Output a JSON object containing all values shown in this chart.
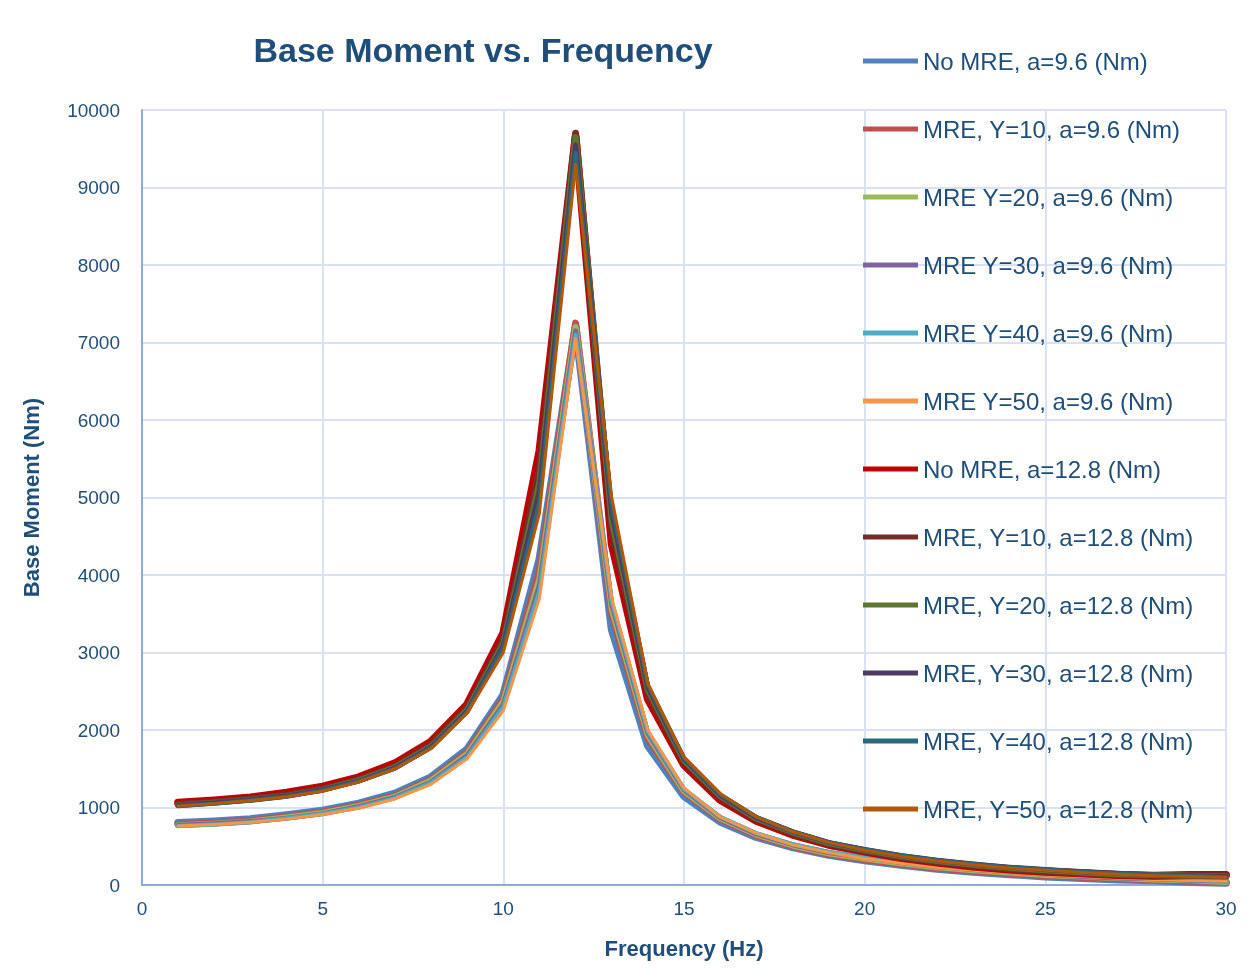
{
  "chart_data": {
    "type": "line",
    "title": "Base Moment vs. Frequency",
    "xlabel": "Frequency (Hz)",
    "ylabel": "Base Moment (Nm)",
    "x": [
      1,
      2,
      3,
      4,
      5,
      6,
      7,
      8,
      9,
      10,
      11,
      12,
      13,
      14,
      15,
      16,
      17,
      18,
      19,
      20,
      21,
      22,
      23,
      24,
      25,
      26,
      27,
      28,
      29,
      30
    ],
    "xlim": [
      0,
      30
    ],
    "xticks": [
      0,
      5,
      10,
      15,
      20,
      25,
      30
    ],
    "ylim": [
      0,
      10000
    ],
    "yticks": [
      0,
      1000,
      2000,
      3000,
      4000,
      5000,
      6000,
      7000,
      8000,
      9000,
      10000
    ],
    "grid": true,
    "legend": "right",
    "marker": "none",
    "line_style": "solid",
    "series": [
      {
        "name": "No MRE, a=9.6 (Nm)",
        "color": "#4f81bd",
        "values": [
          800,
          820,
          850,
          900,
          960,
          1050,
          1180,
          1390,
          1750,
          2450,
          4200,
          7200,
          3300,
          1800,
          1150,
          820,
          620,
          490,
          390,
          320,
          260,
          210,
          170,
          140,
          110,
          90,
          70,
          60,
          40,
          30
        ]
      },
      {
        "name": "MRE, Y=10, a=9.6 (Nm)",
        "color": "#c0504d",
        "values": [
          780,
          800,
          830,
          880,
          940,
          1030,
          1150,
          1360,
          1710,
          2400,
          4050,
          7250,
          3500,
          1900,
          1200,
          850,
          640,
          500,
          400,
          330,
          270,
          220,
          180,
          150,
          120,
          100,
          80,
          70,
          50,
          40
        ]
      },
      {
        "name": "MRE Y=20, a=9.6 (Nm)",
        "color": "#9bbb59",
        "values": [
          770,
          790,
          820,
          870,
          930,
          1020,
          1140,
          1350,
          1690,
          2370,
          3950,
          7200,
          3560,
          1930,
          1210,
          860,
          650,
          510,
          410,
          340,
          280,
          230,
          190,
          160,
          130,
          110,
          90,
          70,
          60,
          40
        ]
      },
      {
        "name": "MRE Y=30, a=9.6 (Nm)",
        "color": "#8064a2",
        "values": [
          770,
          790,
          820,
          860,
          920,
          1010,
          1130,
          1330,
          1670,
          2330,
          3870,
          7150,
          3620,
          1960,
          1230,
          870,
          660,
          520,
          420,
          350,
          290,
          240,
          200,
          170,
          140,
          110,
          90,
          80,
          60,
          50
        ]
      },
      {
        "name": "MRE Y=40, a=9.6 (Nm)",
        "color": "#4bacc6",
        "values": [
          760,
          780,
          810,
          860,
          920,
          1000,
          1120,
          1320,
          1650,
          2300,
          3800,
          7100,
          3660,
          1980,
          1240,
          880,
          670,
          530,
          430,
          360,
          300,
          250,
          210,
          170,
          140,
          120,
          100,
          80,
          60,
          50
        ]
      },
      {
        "name": "MRE Y=50, a=9.6 (Nm)",
        "color": "#f79646",
        "values": [
          760,
          780,
          810,
          850,
          910,
          990,
          1110,
          1300,
          1630,
          2250,
          3700,
          7050,
          3700,
          2000,
          1250,
          880,
          670,
          520,
          420,
          340,
          280,
          230,
          190,
          160,
          130,
          110,
          90,
          70,
          60,
          50
        ]
      },
      {
        "name": "No MRE, a=12.8 (Nm)",
        "color": "#c00000",
        "values": [
          1060,
          1090,
          1130,
          1190,
          1270,
          1390,
          1570,
          1850,
          2330,
          3250,
          5600,
          9650,
          4400,
          2400,
          1550,
          1100,
          830,
          650,
          520,
          430,
          350,
          290,
          240,
          200,
          170,
          150,
          130,
          120,
          130,
          130
        ]
      },
      {
        "name": "MRE, Y=10, a=12.8 (Nm)",
        "color": "#772c2a",
        "values": [
          1040,
          1070,
          1110,
          1160,
          1240,
          1360,
          1530,
          1810,
          2280,
          3170,
          5350,
          9700,
          4600,
          2480,
          1590,
          1130,
          850,
          670,
          530,
          440,
          360,
          300,
          250,
          210,
          180,
          160,
          140,
          120,
          120,
          120
        ]
      },
      {
        "name": "MRE, Y=20, a=12.8 (Nm)",
        "color": "#5f7530",
        "values": [
          1030,
          1060,
          1100,
          1150,
          1230,
          1350,
          1520,
          1790,
          2260,
          3120,
          5200,
          9650,
          4700,
          2520,
          1610,
          1150,
          860,
          680,
          540,
          450,
          370,
          310,
          260,
          220,
          190,
          160,
          140,
          130,
          120,
          110
        ]
      },
      {
        "name": "MRE, Y=30, a=12.8 (Nm)",
        "color": "#4d3b62",
        "values": [
          1030,
          1060,
          1100,
          1150,
          1230,
          1340,
          1510,
          1780,
          2240,
          3090,
          5100,
          9550,
          4800,
          2550,
          1630,
          1160,
          870,
          690,
          550,
          460,
          380,
          320,
          270,
          230,
          200,
          170,
          150,
          130,
          120,
          110
        ]
      },
      {
        "name": "MRE, Y=40, a=12.8 (Nm)",
        "color": "#276a7c",
        "values": [
          1020,
          1050,
          1090,
          1140,
          1220,
          1340,
          1500,
          1770,
          2230,
          3060,
          4950,
          9450,
          4900,
          2580,
          1640,
          1170,
          880,
          690,
          550,
          460,
          380,
          320,
          270,
          230,
          200,
          170,
          150,
          130,
          120,
          100
        ]
      },
      {
        "name": "MRE, Y=50, a=12.8 (Nm)",
        "color": "#b65708",
        "values": [
          1020,
          1050,
          1090,
          1140,
          1210,
          1330,
          1500,
          1760,
          2220,
          3000,
          4800,
          9300,
          5000,
          2600,
          1650,
          1180,
          880,
          690,
          550,
          450,
          370,
          310,
          260,
          220,
          190,
          160,
          140,
          120,
          110,
          100
        ]
      }
    ]
  }
}
